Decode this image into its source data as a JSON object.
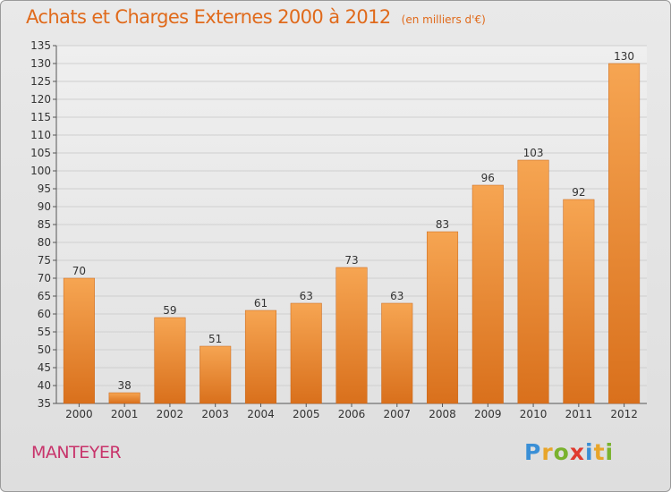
{
  "header": {
    "title": "Achats et Charges Externes 2000 à 2012",
    "subtitle": "(en milliers d'€)"
  },
  "footer": {
    "place": "MANTEYER",
    "logo": [
      "P",
      "r",
      "o",
      "x",
      "i",
      "t",
      "i"
    ]
  },
  "colors": {
    "title": "#e06a1b",
    "place": "#c8346b",
    "bar_top": "#f6a552",
    "bar_bottom": "#d9701c"
  },
  "chart_data": {
    "type": "bar",
    "categories": [
      "2000",
      "2001",
      "2002",
      "2003",
      "2004",
      "2005",
      "2006",
      "2007",
      "2008",
      "2009",
      "2010",
      "2011",
      "2012"
    ],
    "values": [
      70,
      38,
      59,
      51,
      61,
      63,
      73,
      63,
      83,
      96,
      103,
      92,
      130
    ],
    "title": "Achats et Charges Externes 2000 à 2012",
    "subtitle": "(en milliers d'€)",
    "ylim": [
      35,
      135
    ],
    "yticks": [
      35,
      40,
      45,
      50,
      55,
      60,
      65,
      70,
      75,
      80,
      85,
      90,
      95,
      100,
      105,
      110,
      115,
      120,
      125,
      130,
      135
    ],
    "grid": true,
    "data_labels": true
  }
}
